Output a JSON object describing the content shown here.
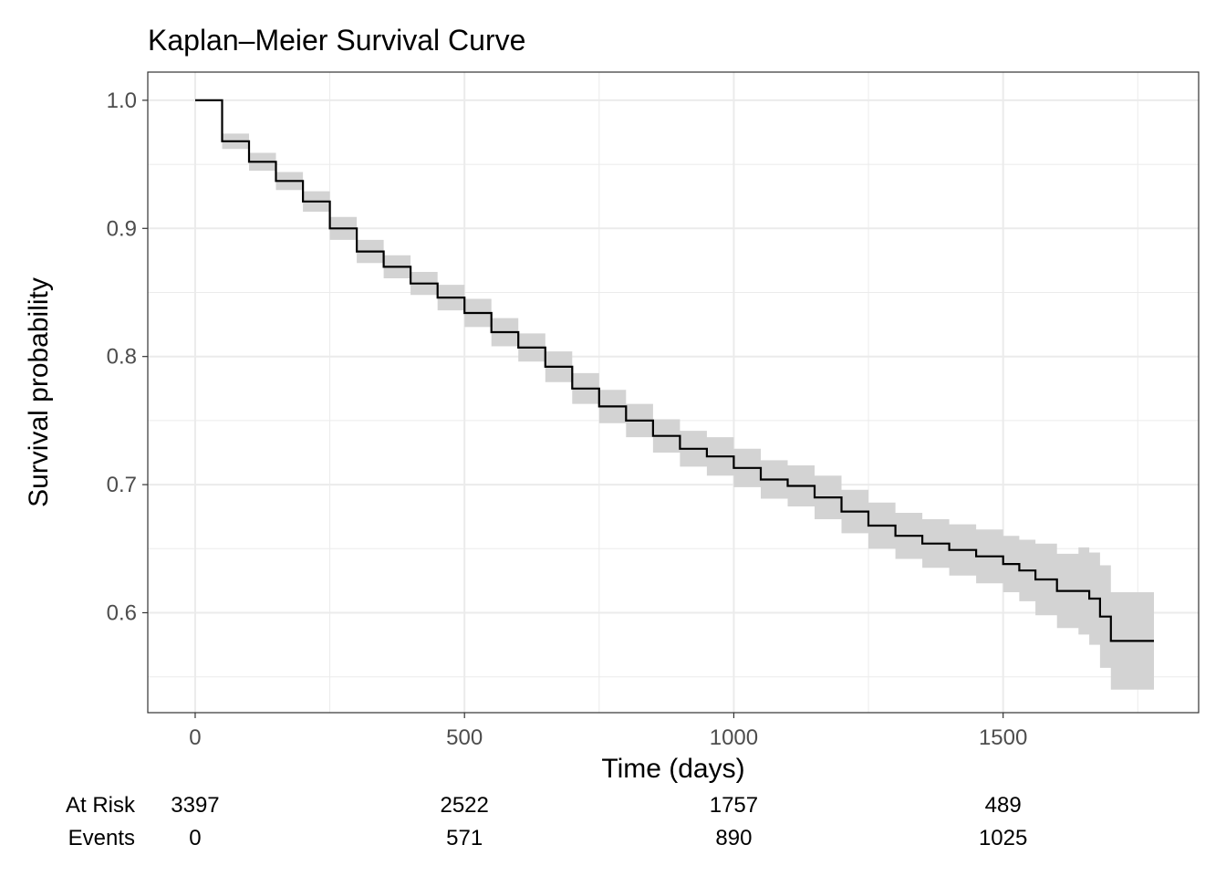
{
  "chart_data": {
    "type": "line",
    "title": "Kaplan–Meier Survival Curve",
    "xlabel": "Time (days)",
    "ylabel": "Survival probability",
    "xlim": [
      -88,
      1863
    ],
    "ylim": [
      0.522,
      1.022
    ],
    "x_ticks": [
      0,
      500,
      1000,
      1500
    ],
    "x_tick_labels": [
      "0",
      "500",
      "1000",
      "1500"
    ],
    "y_ticks": [
      0.6,
      0.7,
      0.8,
      0.9,
      1.0
    ],
    "y_tick_labels": [
      "0.6",
      "0.7",
      "0.8",
      "0.9",
      "1.0"
    ],
    "grid": true,
    "series": [
      {
        "color": "#000000",
        "band_color": "#d3d3d3",
        "x": [
          0,
          50,
          100,
          150,
          200,
          250,
          300,
          350,
          400,
          450,
          500,
          550,
          600,
          650,
          700,
          750,
          800,
          850,
          900,
          950,
          1000,
          1050,
          1100,
          1150,
          1200,
          1250,
          1300,
          1350,
          1400,
          1450,
          1500,
          1530,
          1560,
          1600,
          1640,
          1660,
          1680,
          1700,
          1780
        ],
        "y": [
          1.0,
          0.968,
          0.952,
          0.937,
          0.921,
          0.9,
          0.882,
          0.87,
          0.857,
          0.846,
          0.834,
          0.819,
          0.807,
          0.792,
          0.775,
          0.761,
          0.75,
          0.738,
          0.728,
          0.722,
          0.713,
          0.704,
          0.699,
          0.69,
          0.679,
          0.668,
          0.66,
          0.654,
          0.649,
          0.644,
          0.638,
          0.633,
          0.626,
          0.617,
          0.617,
          0.611,
          0.597,
          0.578,
          0.578
        ],
        "lower": [
          1.0,
          0.962,
          0.945,
          0.93,
          0.913,
          0.891,
          0.873,
          0.861,
          0.848,
          0.836,
          0.823,
          0.808,
          0.796,
          0.78,
          0.763,
          0.748,
          0.737,
          0.725,
          0.714,
          0.707,
          0.698,
          0.689,
          0.683,
          0.673,
          0.662,
          0.65,
          0.642,
          0.635,
          0.629,
          0.623,
          0.616,
          0.609,
          0.598,
          0.588,
          0.583,
          0.575,
          0.557,
          0.54,
          0.54
        ],
        "upper": [
          1.0,
          0.974,
          0.959,
          0.944,
          0.929,
          0.909,
          0.891,
          0.879,
          0.866,
          0.856,
          0.845,
          0.83,
          0.818,
          0.804,
          0.787,
          0.774,
          0.763,
          0.751,
          0.742,
          0.737,
          0.728,
          0.719,
          0.715,
          0.707,
          0.696,
          0.686,
          0.678,
          0.673,
          0.669,
          0.665,
          0.66,
          0.657,
          0.654,
          0.646,
          0.651,
          0.647,
          0.637,
          0.616,
          0.616
        ]
      }
    ]
  },
  "risk_table": {
    "at_risk_label": "At Risk",
    "events_label": "Events",
    "times": [
      0,
      500,
      1000,
      1500
    ],
    "at_risk": [
      "3397",
      "2522",
      "1757",
      "489"
    ],
    "events": [
      "0",
      "571",
      "890",
      "1025"
    ]
  }
}
